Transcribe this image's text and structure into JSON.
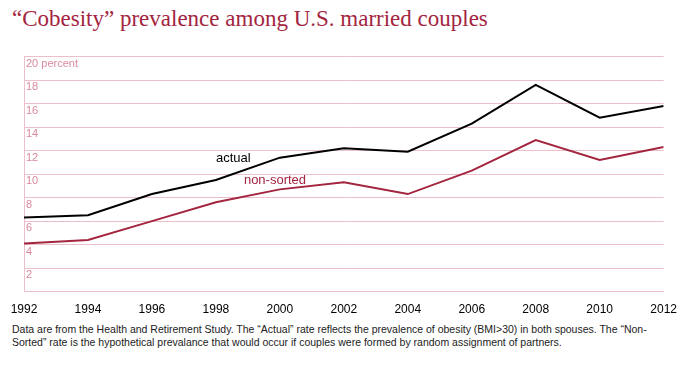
{
  "chart_data": {
    "type": "line",
    "title": "“Cobesity” prevalence among U.S. married couples",
    "caption": "Data are from the Health and Retirement Study. The “Actual” rate reflects the prevalence of obesity (BMI>30) in both spouses. The “Non-Sorted” rate is the hypothetical prevalance that would occur if couples were formed by random assignment of partners.",
    "x": [
      1992,
      1994,
      1996,
      1998,
      2000,
      2002,
      2004,
      2006,
      2008,
      2010,
      2012
    ],
    "xlim": [
      1992,
      2012
    ],
    "xticks": [
      1992,
      1994,
      1996,
      1998,
      2000,
      2002,
      2004,
      2006,
      2008,
      2010,
      2012
    ],
    "ylim": [
      0,
      20
    ],
    "yticks": [
      2,
      4,
      6,
      8,
      10,
      12,
      14,
      16,
      18,
      {
        "value": 20,
        "label": "20 percent"
      }
    ],
    "grid": true,
    "series": [
      {
        "name": "actual",
        "color": "#000000",
        "marker": "none",
        "line_style": "solid",
        "values": [
          6.3,
          6.5,
          8.3,
          9.5,
          11.4,
          12.2,
          11.9,
          14.3,
          17.6,
          14.8,
          15.8
        ]
      },
      {
        "name": "non-sorted",
        "color": "#a3253f",
        "marker": "none",
        "line_style": "solid",
        "values": [
          4.1,
          4.4,
          6.0,
          7.6,
          8.7,
          9.3,
          8.3,
          10.3,
          12.9,
          11.2,
          12.3
        ]
      }
    ]
  }
}
